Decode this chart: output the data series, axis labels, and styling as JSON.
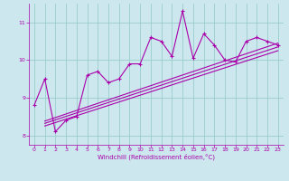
{
  "xlabel": "Windchill (Refroidissement éolien,°C)",
  "background_color": "#cce8ee",
  "line_color": "#aa00aa",
  "grid_color": "#99cccc",
  "x_data": [
    0,
    1,
    2,
    3,
    4,
    5,
    6,
    7,
    8,
    9,
    10,
    11,
    12,
    13,
    14,
    15,
    16,
    17,
    18,
    19,
    20,
    21,
    22,
    23
  ],
  "y_main": [
    8.8,
    9.5,
    8.1,
    8.4,
    8.5,
    9.6,
    9.7,
    9.4,
    9.5,
    9.9,
    9.9,
    10.6,
    10.5,
    10.1,
    11.3,
    10.05,
    10.7,
    10.4,
    10.0,
    9.95,
    10.5,
    10.6,
    10.5,
    10.4
  ],
  "trend_lines": [
    {
      "x0": 1,
      "y0": 8.25,
      "x1": 23,
      "y1": 10.25
    },
    {
      "x0": 1,
      "y0": 8.32,
      "x1": 23,
      "y1": 10.35
    },
    {
      "x0": 1,
      "y0": 8.38,
      "x1": 23,
      "y1": 10.45
    }
  ],
  "ylim": [
    7.75,
    11.5
  ],
  "xlim": [
    -0.5,
    23.5
  ],
  "yticks": [
    8,
    9,
    10,
    11
  ],
  "xticks": [
    0,
    1,
    2,
    3,
    4,
    5,
    6,
    7,
    8,
    9,
    10,
    11,
    12,
    13,
    14,
    15,
    16,
    17,
    18,
    19,
    20,
    21,
    22,
    23
  ]
}
